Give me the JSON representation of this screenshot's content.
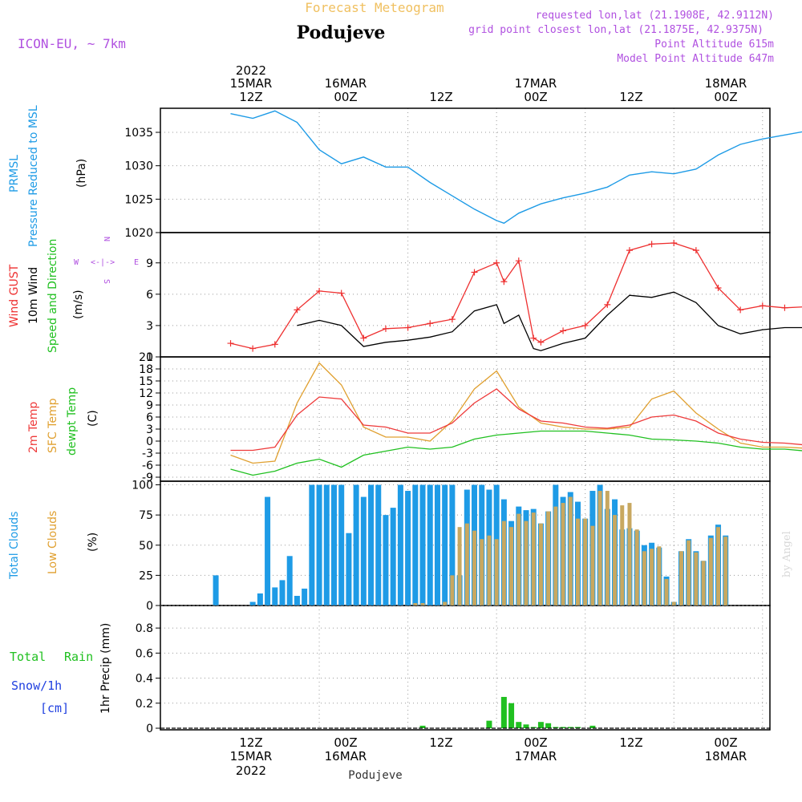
{
  "header": {
    "title_top": "Forecast Meteogram",
    "location": "Podujeve",
    "model": "ICON-EU, ~ 7km",
    "requested": "requested lon,lat (21.1908E, 42.9112N)",
    "grid_point": "grid point closest lon,lat (21.1875E, 42.9375N)",
    "point_alt": "Point Altitude 615m",
    "model_alt": "Model Point Altitude 647m",
    "footer": "Podujeve",
    "watermark": "by Angel"
  },
  "time_axis": {
    "top_labels": [
      {
        "day": "2022",
        "date": "15MAR",
        "hour": "12Z"
      },
      {
        "day": "",
        "date": "16MAR",
        "hour": "00Z"
      },
      {
        "day": "",
        "date": "",
        "hour": "12Z"
      },
      {
        "day": "",
        "date": "17MAR",
        "hour": "00Z"
      },
      {
        "day": "",
        "date": "",
        "hour": "12Z"
      },
      {
        "day": "",
        "date": "18MAR",
        "hour": "00Z"
      }
    ],
    "bottom_labels": [
      {
        "hour": "12Z",
        "date": "15MAR",
        "year": "2022"
      },
      {
        "hour": "00Z",
        "date": "16MAR",
        "year": ""
      },
      {
        "hour": "12Z",
        "date": "",
        "year": ""
      },
      {
        "hour": "00Z",
        "date": "17MAR",
        "year": ""
      },
      {
        "hour": "12Z",
        "date": "",
        "year": ""
      },
      {
        "hour": "00Z",
        "date": "18MAR",
        "year": ""
      }
    ],
    "label_hours": [
      12,
      24,
      36,
      48,
      60,
      72
    ]
  },
  "panels": {
    "pressure": {
      "label1": "PRMSL",
      "label2": "Pressure Reduced to MSL",
      "unit": "(hPa)",
      "ticks": [
        "1020",
        "1025",
        "1030",
        "1035"
      ]
    },
    "wind": {
      "label1": "Wind GUST",
      "label2": "10m Wind",
      "label3": "Speed and Direction",
      "unit": "(m/s)",
      "ticks": [
        "0",
        "3",
        "6",
        "9"
      ],
      "compass": {
        "n": "N",
        "s": "S",
        "w": "W",
        "e": "E"
      }
    },
    "temp": {
      "label1": "2m Temp",
      "label2": "SFC Temp",
      "label3": "dewpt Temp",
      "unit": "(C)",
      "ticks": [
        "-9",
        "-6",
        "-3",
        "0",
        "3",
        "6",
        "9",
        "12",
        "15",
        "18",
        "21"
      ]
    },
    "clouds": {
      "label1": "Total Clouds",
      "label2": "Low Clouds",
      "unit": "(%)",
      "ticks": [
        "0",
        "25",
        "50",
        "75",
        "100"
      ]
    },
    "precip": {
      "label1": "Total",
      "label2": "Rain",
      "label3": "Snow/1h",
      "label4": "[cm]",
      "unit": "1hr Precip (mm)",
      "ticks": [
        "0",
        "0.2",
        "0.4",
        "0.6",
        "0.8"
      ]
    }
  },
  "colors": {
    "pressure": "#1e9be6",
    "gust": "#ee3030",
    "wind": "#000000",
    "temp": "#ee3a3a",
    "sfc": "#e0a030",
    "dew": "#20c020",
    "total_cloud": "#1e9be6",
    "low_cloud": "#c8a860",
    "rain": "#20c020",
    "snow": "#2040e0",
    "title_orange": "#f0c060",
    "meta_purple": "#b050e0"
  },
  "chart_data": [
    {
      "type": "line",
      "name": "PRMSL",
      "x_hours": [
        0,
        3,
        6,
        9,
        12,
        15,
        18,
        21,
        24,
        27,
        30,
        33,
        36,
        37,
        39,
        42,
        45,
        48,
        51,
        54,
        57,
        60,
        63,
        66,
        69,
        72,
        75,
        78
      ],
      "values": [
        1037.8,
        1037.1,
        1038.2,
        1036.5,
        1032.4,
        1030.3,
        1031.3,
        1029.8,
        1029.8,
        1027.5,
        1025.5,
        1023.5,
        1021.8,
        1021.4,
        1022.9,
        1024.3,
        1025.2,
        1025.9,
        1026.8,
        1028.6,
        1029.1,
        1028.8,
        1029.5,
        1031.6,
        1033.2,
        1034.0,
        1034.6,
        1035.2
      ],
      "ylim": [
        1020,
        1038.6
      ]
    },
    {
      "type": "line",
      "name": "Wind GUST / 10m Wind",
      "x_hours": [
        0,
        3,
        6,
        9,
        12,
        15,
        18,
        21,
        24,
        27,
        30,
        33,
        36,
        37,
        39,
        41,
        42,
        45,
        48,
        51,
        54,
        57,
        60,
        63,
        66,
        69,
        72,
        75,
        78
      ],
      "gust": [
        1.3,
        0.8,
        1.2,
        4.5,
        6.3,
        6.1,
        1.8,
        2.7,
        2.8,
        3.2,
        3.6,
        8.1,
        9.0,
        7.2,
        9.2,
        1.8,
        1.4,
        2.5,
        3.0,
        5.0,
        10.2,
        10.8,
        10.9,
        10.2,
        6.6,
        4.5,
        4.9,
        4.7,
        4.8
      ],
      "wind": [
        null,
        null,
        null,
        3.0,
        3.5,
        3.0,
        1.0,
        1.4,
        1.6,
        1.9,
        2.4,
        4.4,
        5.0,
        3.2,
        4.0,
        0.8,
        0.6,
        1.3,
        1.8,
        4.0,
        5.9,
        5.7,
        6.2,
        5.2,
        3.0,
        2.2,
        2.6,
        2.8,
        2.8
      ],
      "ylim": [
        0,
        11.9
      ]
    },
    {
      "type": "line",
      "name": "Temperature",
      "x_hours": [
        0,
        3,
        6,
        9,
        12,
        15,
        18,
        21,
        24,
        27,
        30,
        33,
        36,
        39,
        42,
        45,
        48,
        51,
        54,
        57,
        60,
        63,
        66,
        69,
        72,
        75,
        78
      ],
      "t2m": [
        -2.3,
        -2.3,
        -1.5,
        6.5,
        11.0,
        10.5,
        4.0,
        3.5,
        2.0,
        2.0,
        4.5,
        9.5,
        13.0,
        8.0,
        5.0,
        4.5,
        3.5,
        3.2,
        4.0,
        6.0,
        6.5,
        5.0,
        2.0,
        0.5,
        -0.3,
        -0.5,
        -1.0
      ],
      "sfc": [
        -3.5,
        -5.5,
        -5.0,
        9.5,
        19.5,
        14.0,
        3.5,
        1.0,
        1.0,
        0.0,
        5.0,
        13.0,
        17.5,
        8.5,
        4.5,
        3.5,
        3.0,
        3.0,
        3.5,
        10.5,
        12.5,
        7.0,
        3.0,
        -0.5,
        -1.5,
        -1.5,
        -1.8
      ],
      "dew": [
        -7.0,
        -8.5,
        -7.5,
        -5.5,
        -4.5,
        -6.5,
        -3.5,
        -2.5,
        -1.5,
        -2.0,
        -1.5,
        0.5,
        1.5,
        2.0,
        2.5,
        2.5,
        2.5,
        2.0,
        1.5,
        0.5,
        0.3,
        0.0,
        -0.5,
        -1.5,
        -2.0,
        -2.0,
        -2.5
      ],
      "ylim": [
        -10,
        21
      ]
    },
    {
      "type": "bar",
      "name": "Clouds",
      "total": [
        0,
        0,
        25,
        0,
        0,
        0,
        0,
        3,
        10,
        90,
        15,
        21,
        41,
        8,
        14,
        100,
        100,
        100,
        100,
        100,
        60,
        100,
        90,
        100,
        100,
        75,
        81,
        100,
        95,
        100,
        100,
        100,
        100,
        100,
        100,
        25,
        96,
        100,
        100,
        96,
        100,
        88,
        70,
        82,
        79,
        80,
        68,
        78,
        100,
        90,
        94,
        86,
        72,
        95,
        100,
        80,
        88,
        63,
        64,
        62,
        50,
        52,
        48,
        24,
        3,
        45,
        55,
        45,
        37,
        58,
        67,
        58
      ],
      "low": [
        0,
        0,
        0,
        0,
        0,
        0,
        0,
        0,
        0,
        0,
        0,
        0,
        0,
        0,
        0,
        0,
        0,
        0,
        0,
        0,
        0,
        0,
        0,
        0,
        0,
        0,
        0,
        0,
        0,
        2,
        2,
        0,
        0,
        3,
        25,
        65,
        68,
        62,
        55,
        58,
        55,
        70,
        65,
        76,
        70,
        77,
        68,
        78,
        82,
        85,
        90,
        72,
        72,
        66,
        95,
        95,
        75,
        83,
        85,
        63,
        45,
        47,
        49,
        22,
        3,
        45,
        54,
        44,
        37,
        56,
        65,
        57
      ],
      "ylim": [
        0,
        103
      ]
    },
    {
      "type": "bar",
      "name": "1hr Precip",
      "rain_hours": [
        26,
        35,
        37,
        38,
        39,
        40,
        41,
        42,
        43,
        44,
        45,
        46,
        47,
        49
      ],
      "rain_values": [
        0.02,
        0.06,
        0.25,
        0.2,
        0.05,
        0.03,
        0.01,
        0.05,
        0.04,
        0.01,
        0.01,
        0.01,
        0.01,
        0.02
      ],
      "ylim": [
        0,
        0.98
      ]
    }
  ]
}
